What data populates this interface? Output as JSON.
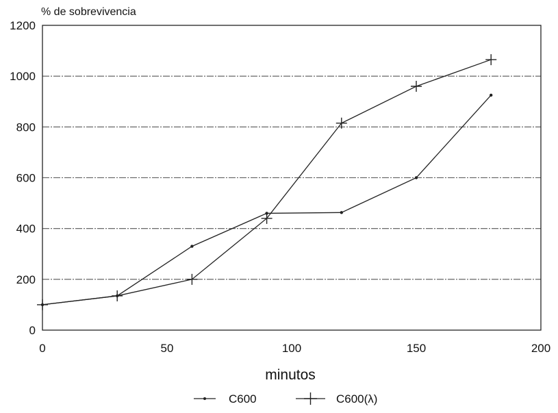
{
  "chart_data": {
    "type": "line",
    "ylabel": "% de sobrevivencia",
    "xlabel": "minutos",
    "xlim": [
      0,
      200
    ],
    "ylim": [
      0,
      1200
    ],
    "xticks": [
      0,
      50,
      100,
      150,
      200
    ],
    "yticks": [
      0,
      200,
      400,
      600,
      800,
      1000,
      1200
    ],
    "grid": "horizontal",
    "legend": "bottom",
    "series": [
      {
        "name": "C600",
        "marker": "dot",
        "x": [
          0,
          30,
          60,
          90,
          120,
          150,
          180
        ],
        "y": [
          100,
          135,
          330,
          460,
          463,
          600,
          925
        ]
      },
      {
        "name": "C600(λ)",
        "marker": "plus",
        "x": [
          0,
          30,
          60,
          90,
          120,
          150,
          180
        ],
        "y": [
          100,
          135,
          200,
          440,
          815,
          960,
          1065
        ]
      }
    ]
  }
}
